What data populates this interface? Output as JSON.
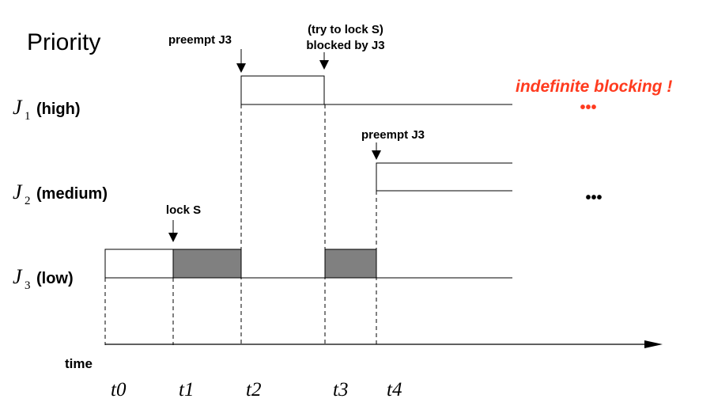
{
  "axis_title": "Priority",
  "time_label": "time",
  "jobs": [
    {
      "symbol": "J",
      "sub": "1",
      "label": "(high)"
    },
    {
      "symbol": "J",
      "sub": "2",
      "label": "(medium)"
    },
    {
      "symbol": "J",
      "sub": "3",
      "label": "(low)"
    }
  ],
  "ticks": [
    "t0",
    "t1",
    "t2",
    "t3",
    "t4"
  ],
  "annotations": {
    "preempt_j3_a": "preempt J3",
    "try_lock_line1": "(try to lock S)",
    "try_lock_line2": "blocked by J3",
    "preempt_j3_b": "preempt J3",
    "lock_s": "lock S"
  },
  "highlight": {
    "text": "indefinite blocking !",
    "color": "#ff3b1f"
  },
  "ellipsis": {
    "high": "•••",
    "medium": "•••"
  },
  "colors": {
    "critical_section": "#808080",
    "line": "#000000"
  }
}
